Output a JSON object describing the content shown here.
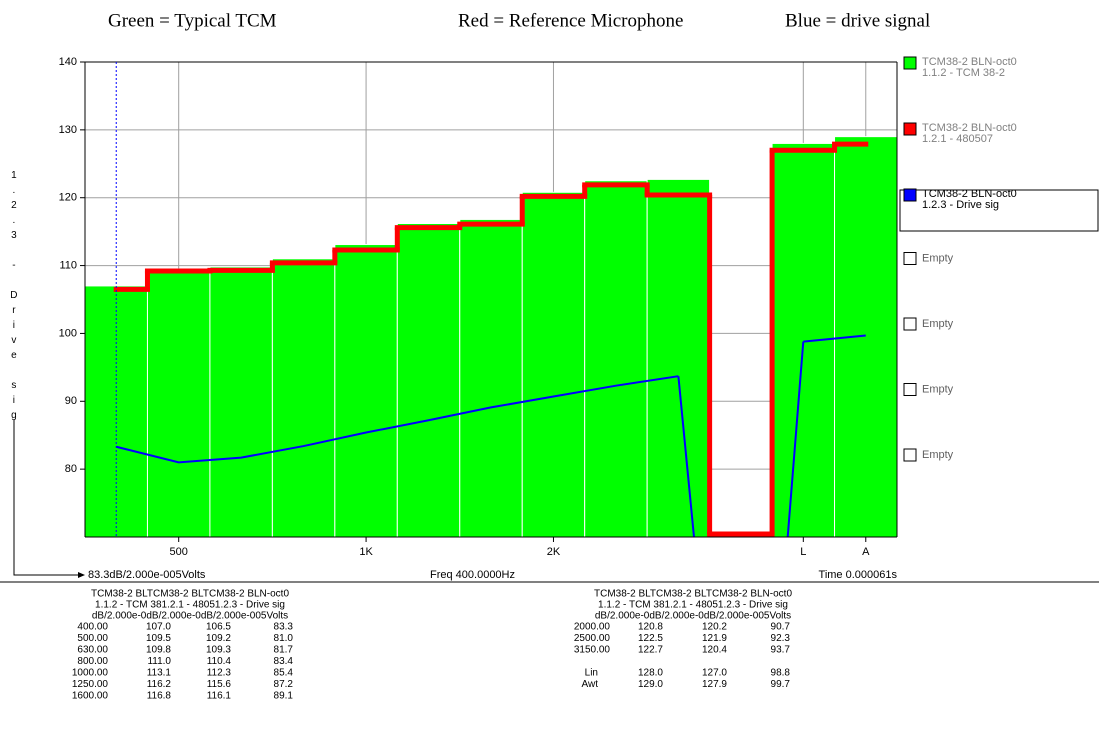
{
  "header": [
    "Green = Typical TCM",
    "Red = Reference Microphone",
    "Blue = drive signal"
  ],
  "chart_data": {
    "type": "step-bar",
    "ylabel": "1.2.3 - Drive sig",
    "categories": [
      "400.00",
      "500.00",
      "630.00",
      "800.00",
      "1000.00",
      "1250.00",
      "1600.00",
      "2000.00",
      "2500.00",
      "3150.00",
      null,
      "Lin",
      "Awt"
    ],
    "xticks": [
      {
        "value": 1,
        "label": "500"
      },
      {
        "value": 4,
        "label": "1K"
      },
      {
        "value": 7,
        "label": "2K"
      },
      {
        "value": 11,
        "label": "L"
      },
      {
        "value": 12,
        "label": "A"
      }
    ],
    "ylim": [
      70,
      140
    ],
    "yticks": [
      80,
      90,
      100,
      110,
      120,
      130,
      140
    ],
    "grid": true,
    "series": [
      {
        "name": "TCM38-2 BLN-oct0",
        "sublabel": "1.1.2 - TCM 38-2",
        "color": "#00ff00",
        "style": "bar",
        "values": [
          107.0,
          109.5,
          109.8,
          111.0,
          113.1,
          116.2,
          116.8,
          120.8,
          122.5,
          122.7,
          null,
          128.0,
          129.0
        ],
        "value_labels": [
          "107.0",
          "109.5",
          "109.8",
          "111.0",
          "113.1",
          "116.2",
          "116.8",
          "120.8",
          "122.5",
          "122.7",
          null,
          "128.0",
          "129.0"
        ]
      },
      {
        "name": "TCM38-2 BLN-oct0",
        "sublabel": "1.2.1 - 480507",
        "color": "#ff0000",
        "style": "step",
        "values": [
          106.5,
          109.2,
          109.3,
          110.4,
          112.3,
          115.6,
          116.1,
          120.2,
          121.9,
          120.4,
          null,
          127.0,
          127.9
        ],
        "value_labels": [
          "106.5",
          "109.2",
          "109.3",
          "110.4",
          "112.3",
          "115.6",
          "116.1",
          "120.2",
          "121.9",
          "120.4",
          null,
          "127.0",
          "127.9"
        ]
      },
      {
        "name": "TCM38-2 BLN-oct0",
        "sublabel": "1.2.3 - Drive sig",
        "color": "#0000ff",
        "style": "line",
        "values": [
          83.3,
          81.0,
          81.7,
          83.4,
          85.4,
          87.2,
          89.1,
          90.7,
          92.3,
          93.7,
          null,
          98.8,
          99.7
        ],
        "value_labels": [
          "83.3",
          "81.0",
          "81.7",
          "83.4",
          "85.4",
          "87.2",
          "89.1",
          "90.7",
          "92.3",
          "93.7",
          null,
          "98.8",
          "99.7"
        ]
      }
    ],
    "legend_empty": [
      "Empty",
      "Empty",
      "Empty",
      "Empty"
    ],
    "cursor": {
      "index": 0,
      "readout": "83.3dB/2.000e-005Volts",
      "freq": "Freq 400.0000Hz",
      "time": "Time 0.000061s"
    }
  },
  "table": {
    "header": [
      "TCM38-2 BLTCM38-2 BLTCM38-2 BLN-oct0",
      "1.1.2 - TCM 381.2.1 - 48051.2.3 - Drive sig",
      "dB/2.000e-0dB/2.000e-0dB/2.000e-005Volts"
    ]
  }
}
